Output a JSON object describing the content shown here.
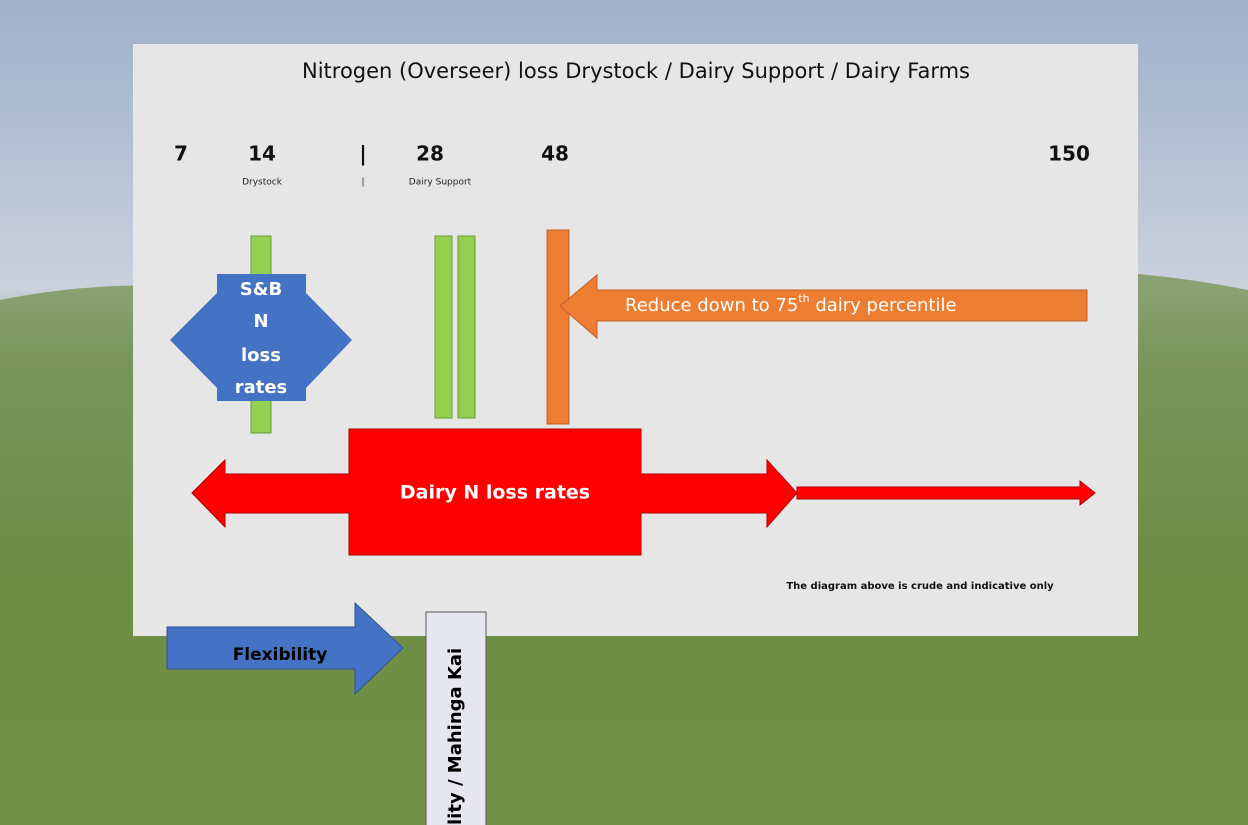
{
  "title": "Nitrogen (Overseer) loss Drystock / Dairy Support / Dairy Farms",
  "scale": {
    "labels": [
      "7",
      "14",
      "|",
      "28",
      "48",
      "150"
    ],
    "sublabels": [
      "Drystock",
      "|",
      "Dairy Support"
    ]
  },
  "shapes": {
    "sb_cross": {
      "lines": [
        "S&B",
        "N",
        "loss",
        "rates"
      ]
    },
    "reduce_arrow": {
      "text": "Reduce down to 75",
      "superscript": "th",
      "text_after": " dairy percentile"
    },
    "dairy_arrow": {
      "text": "Dairy N loss rates"
    },
    "flexibility_arrow": {
      "text": "Flexibility"
    },
    "vertical_box": {
      "text": "lity / Mahinga Kai"
    }
  },
  "note": "The diagram above is crude and  indicative only"
}
